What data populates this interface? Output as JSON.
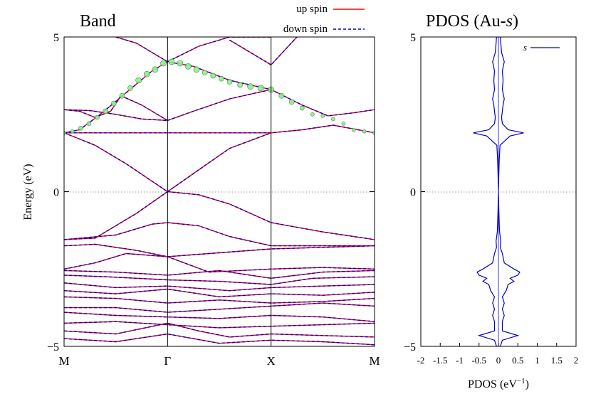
{
  "chart_data": [
    {
      "type": "line",
      "title": "Band",
      "ylabel": "Energy (eV)",
      "ylim": [
        -5,
        5
      ],
      "yticks": [
        "−5",
        "0",
        "5"
      ],
      "kpoints": [
        "M",
        "Γ",
        "X",
        "M"
      ],
      "kpath": [
        0,
        1,
        2,
        3
      ],
      "legend": {
        "position": "top",
        "entries": [
          "up spin",
          "down spin"
        ]
      },
      "colors": {
        "up_spin": "#ff0000",
        "down_spin": "#0000cc",
        "weight": "#90ee90",
        "fermi": "#999999"
      },
      "bands": [
        {
          "x": [
            0,
            0.15,
            0.35,
            0.6,
            0.85,
            1.0,
            1.25,
            1.6,
            2.0,
            2.3,
            2.55,
            2.8,
            3.0
          ],
          "y": [
            1.9,
            2.0,
            2.5,
            3.2,
            3.9,
            4.2,
            4.05,
            3.6,
            3.3,
            2.8,
            2.45,
            2.55,
            2.65
          ]
        },
        {
          "x": [
            0,
            0.2,
            0.5,
            1.0,
            1.5,
            2.0,
            2.3,
            2.6,
            3.0
          ],
          "y": [
            1.9,
            1.9,
            1.9,
            1.9,
            1.9,
            1.9,
            2.0,
            2.15,
            1.9
          ]
        },
        {
          "x": [
            0,
            0.25,
            0.5,
            0.75,
            1.0
          ],
          "y": [
            2.65,
            2.62,
            2.5,
            2.35,
            2.3
          ]
        },
        {
          "x": [
            0,
            0.15,
            0.3,
            0.45,
            0.55
          ],
          "y": [
            2.65,
            2.6,
            2.4,
            2.6,
            3.1
          ]
        },
        {
          "x": [
            0.55,
            0.75,
            1.0
          ],
          "y": [
            3.1,
            2.8,
            2.3
          ]
        },
        {
          "x": [
            1.0,
            1.25,
            1.6,
            2.0
          ],
          "y": [
            2.3,
            2.6,
            3.0,
            3.3
          ]
        },
        {
          "x": [
            1.0,
            1.3,
            1.6,
            2.0
          ],
          "y": [
            0,
            0.7,
            1.4,
            1.9
          ]
        },
        {
          "x": [
            0,
            0.3,
            0.6,
            1.0
          ],
          "y": [
            1.9,
            1.5,
            0.9,
            0
          ]
        },
        {
          "x": [
            1.0,
            1.3,
            1.6,
            1.8,
            2.0
          ],
          "y": [
            4.2,
            4.7,
            5.0,
            5.0,
            5.0
          ]
        },
        {
          "x": [
            0.5,
            0.7,
            0.85,
            1.0
          ],
          "y": [
            5.0,
            4.8,
            4.5,
            4.2
          ]
        },
        {
          "x": [
            1.6,
            1.75,
            1.9,
            2.0,
            2.25
          ],
          "y": [
            4.9,
            4.6,
            4.3,
            4.1,
            5.0
          ]
        },
        {
          "x": [
            0,
            0.3,
            0.7,
            1.0
          ],
          "y": [
            -1.55,
            -1.5,
            -0.7,
            0
          ]
        },
        {
          "x": [
            1.0,
            1.3,
            1.6,
            2.0
          ],
          "y": [
            0,
            -0.1,
            -0.4,
            -1.0
          ]
        },
        {
          "x": [
            2.0,
            2.5,
            3.0
          ],
          "y": [
            -1.0,
            -1.3,
            -1.55
          ]
        },
        {
          "x": [
            0,
            0.5,
            0.85,
            1.0,
            1.3,
            1.6,
            2.0,
            2.5,
            3.0
          ],
          "y": [
            -1.55,
            -1.4,
            -1.05,
            -1.0,
            -1.1,
            -1.45,
            -1.75,
            -1.75,
            -1.75
          ]
        },
        {
          "x": [
            0,
            0.3,
            0.7,
            1.0,
            1.4,
            2.0,
            2.5,
            3.0
          ],
          "y": [
            -1.75,
            -1.7,
            -1.9,
            -2.1,
            -2.0,
            -1.85,
            -1.8,
            -1.75
          ]
        },
        {
          "x": [
            0,
            0.3,
            0.6,
            1.0,
            1.4,
            2.0,
            2.5,
            3.0
          ],
          "y": [
            -2.5,
            -2.3,
            -2.0,
            -2.1,
            -2.6,
            -2.5,
            -2.45,
            -2.5
          ]
        },
        {
          "x": [
            0,
            0.5,
            1.0,
            1.5,
            2.0,
            2.5,
            3.0
          ],
          "y": [
            -2.55,
            -2.6,
            -2.7,
            -2.55,
            -2.8,
            -2.6,
            -2.55
          ]
        },
        {
          "x": [
            0,
            0.4,
            1.0,
            1.5,
            2.0,
            2.4,
            3.0
          ],
          "y": [
            -2.7,
            -2.75,
            -2.85,
            -2.9,
            -3.0,
            -2.8,
            -2.75
          ]
        },
        {
          "x": [
            0,
            0.5,
            1.0,
            1.6,
            2.0,
            2.5,
            3.0
          ],
          "y": [
            -2.95,
            -3.1,
            -3.05,
            -3.2,
            -3.1,
            -3.05,
            -3.0
          ]
        },
        {
          "x": [
            0,
            0.5,
            1.0,
            1.5,
            2.0,
            2.5,
            3.0
          ],
          "y": [
            -3.2,
            -3.3,
            -3.15,
            -3.4,
            -3.3,
            -3.35,
            -3.25
          ]
        },
        {
          "x": [
            0,
            0.5,
            1.0,
            1.5,
            2.0,
            2.5,
            3.0
          ],
          "y": [
            -3.4,
            -3.45,
            -3.6,
            -3.5,
            -3.6,
            -3.55,
            -3.45
          ]
        },
        {
          "x": [
            0,
            0.5,
            1.0,
            1.5,
            2.0,
            2.5,
            3.0
          ],
          "y": [
            -3.75,
            -3.75,
            -3.9,
            -3.8,
            -3.7,
            -3.6,
            -3.7
          ]
        },
        {
          "x": [
            0,
            0.5,
            1.0,
            1.5,
            2.0,
            2.5,
            3.0
          ],
          "y": [
            -3.9,
            -4.0,
            -4.05,
            -4.1,
            -4.0,
            -4.05,
            -4.2
          ]
        },
        {
          "x": [
            0,
            0.5,
            1.0,
            1.5,
            2.0,
            2.5,
            3.0
          ],
          "y": [
            -4.25,
            -4.2,
            -4.3,
            -4.4,
            -4.35,
            -4.3,
            -4.25
          ]
        },
        {
          "x": [
            0,
            0.5,
            1.0,
            1.3,
            1.6,
            2.0,
            2.5,
            3.0
          ],
          "y": [
            -4.5,
            -4.6,
            -4.25,
            -4.5,
            -4.7,
            -4.6,
            -4.65,
            -4.7
          ]
        },
        {
          "x": [
            0,
            0.5,
            1.0,
            1.5,
            2.0,
            2.5,
            3.0
          ],
          "y": [
            -4.75,
            -4.85,
            -4.6,
            -4.9,
            -4.8,
            -4.85,
            -4.95
          ]
        }
      ],
      "weights": {
        "x": [
          0,
          0.08,
          0.16,
          0.24,
          0.32,
          0.4,
          0.48,
          0.56,
          0.64,
          0.72,
          0.8,
          0.88,
          0.96,
          1.04,
          1.12,
          1.2,
          1.28,
          1.36,
          1.44,
          1.52,
          1.6,
          1.7,
          1.8,
          1.9,
          2.0,
          2.1,
          2.2,
          2.3,
          2.4,
          2.5,
          2.6,
          2.7,
          2.8,
          2.9,
          3.0
        ],
        "y": [
          1.9,
          1.95,
          2.05,
          2.2,
          2.4,
          2.6,
          2.85,
          3.1,
          3.35,
          3.6,
          3.8,
          3.95,
          4.15,
          4.2,
          4.15,
          4.05,
          3.95,
          3.85,
          3.75,
          3.65,
          3.55,
          3.45,
          3.4,
          3.35,
          3.3,
          3.1,
          2.9,
          2.7,
          2.5,
          2.45,
          2.35,
          2.2,
          2.0,
          1.95,
          1.9
        ],
        "sizes": [
          5,
          5,
          6,
          6,
          6,
          7,
          7,
          7,
          7,
          8,
          8,
          8,
          8,
          8,
          8,
          8,
          8,
          7,
          7,
          7,
          7,
          7,
          8,
          8,
          8,
          7,
          7,
          6,
          5,
          5,
          5,
          5,
          5,
          5,
          5
        ]
      }
    },
    {
      "type": "line",
      "title": "PDOS (Au-",
      "title_italic": "s",
      "title_end": ")",
      "xlabel": "PDOS (eV",
      "xlabel_sup": "−1",
      "xlabel_end": ")",
      "xlim": [
        -2,
        2
      ],
      "ylim": [
        -5,
        5
      ],
      "xticks": [
        -2,
        -1.5,
        -1,
        -0.5,
        0,
        0.5,
        1,
        1.5,
        2
      ],
      "xtick_labels": [
        "-2",
        "-1.5",
        "-1",
        "-0.5",
        "0",
        "0.5",
        "1",
        "1.5",
        "2"
      ],
      "yticks": [
        "−5",
        "0",
        "5"
      ],
      "legend": {
        "position": "top-right",
        "entries": [
          "s"
        ]
      },
      "color": "#0000cc",
      "series": [
        {
          "name": "s",
          "energy": [
            -5.0,
            -4.8,
            -4.65,
            -4.5,
            -4.2,
            -4.0,
            -3.8,
            -3.6,
            -3.4,
            -3.2,
            -3.0,
            -2.9,
            -2.8,
            -2.7,
            -2.6,
            -2.5,
            -2.3,
            -2.0,
            -1.8,
            -1.6,
            -1.3,
            -1.0,
            -0.5,
            0.0,
            0.5,
            1.0,
            1.5,
            1.8,
            1.9,
            2.0,
            2.2,
            2.4,
            2.6,
            2.8,
            3.0,
            3.3,
            3.6,
            3.9,
            4.2,
            4.5,
            4.8,
            5.0
          ],
          "pdos": [
            0.05,
            0.1,
            0.5,
            0.1,
            0.1,
            0.15,
            0.1,
            0.15,
            0.1,
            0.2,
            0.25,
            0.4,
            0.3,
            0.5,
            0.55,
            0.4,
            0.15,
            0.1,
            0.05,
            0.06,
            0.03,
            0.02,
            0.01,
            0.0,
            0.01,
            0.02,
            0.04,
            0.3,
            0.65,
            0.25,
            0.1,
            0.08,
            0.1,
            0.12,
            0.15,
            0.1,
            0.12,
            0.1,
            0.15,
            0.08,
            0.06,
            0.05
          ]
        }
      ]
    }
  ]
}
